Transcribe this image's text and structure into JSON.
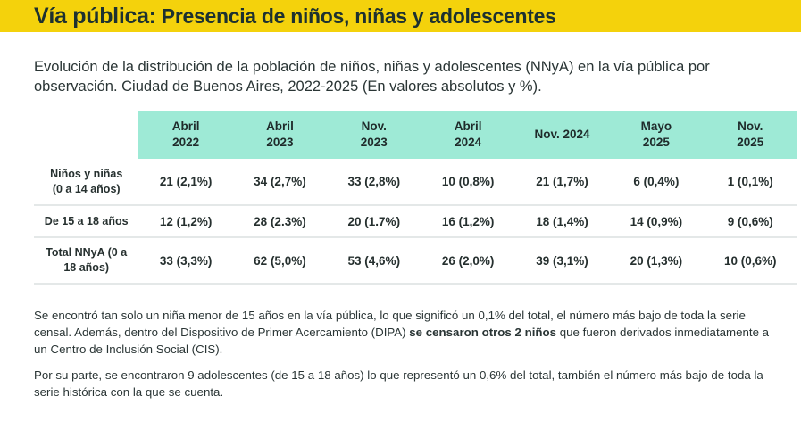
{
  "header": {
    "title_lead": "Vía pública:",
    "title_rest": " Presencia de niños, niñas y adolescentes",
    "bg_color": "#f4d20c"
  },
  "subtitle": "Evolución de la distribución de la población de niños, niñas y adolescentes (NNyA) en la vía pública por observación. Ciudad de Buenos Aires, 2022-2025 (En valores absolutos y %).",
  "table": {
    "header_color": "#9eead6",
    "columns": [
      [
        "Abril",
        "2022"
      ],
      [
        "Abril",
        "2023"
      ],
      [
        "Nov.",
        "2023"
      ],
      [
        "Abril",
        "2024"
      ],
      [
        "Nov. 2024",
        ""
      ],
      [
        "Mayo",
        "2025"
      ],
      [
        "Nov.",
        "2025"
      ]
    ],
    "rows": [
      {
        "label": [
          "Niños y niñas",
          "(0 a 14 años)"
        ],
        "values": [
          "21 (2,1%)",
          "34 (2,7%)",
          "33 (2,8%)",
          "10 (0,8%)",
          "21 (1,7%)",
          "6 (0,4%)",
          "1 (0,1%)"
        ]
      },
      {
        "label": [
          "De 15 a 18 años",
          ""
        ],
        "values": [
          "12 (1,2%)",
          "28 (2.3%)",
          "20 (1.7%)",
          "16 (1,2%)",
          "18 (1,4%)",
          "14 (0,9%)",
          "9 (0,6%)"
        ]
      },
      {
        "label": [
          "Total NNyA (0 a",
          "18 años)"
        ],
        "values": [
          "33 (3,3%)",
          "62 (5,0%)",
          "53 (4,6%)",
          "26 (2,0%)",
          "39 (3,1%)",
          "20 (1,3%)",
          "10 (0,6%)"
        ]
      }
    ]
  },
  "notes": {
    "p1_a": "Se encontró tan solo un niña menor de 15 años en la vía pública, lo que significó un 0,1% del total, el número más bajo de toda la serie censal. Además, dentro del Dispositivo de Primer Acercamiento (DIPA) ",
    "p1_bold": "se censaron otros 2 niños",
    "p1_b": " que fueron derivados inmediatamente a un Centro de Inclusión Social (CIS).",
    "p2": "Por su parte, se encontraron 9 adolescentes (de 15 a 18 años) lo que representó un 0,6% del total, también el número más bajo de toda la serie histórica con la que se cuenta."
  }
}
